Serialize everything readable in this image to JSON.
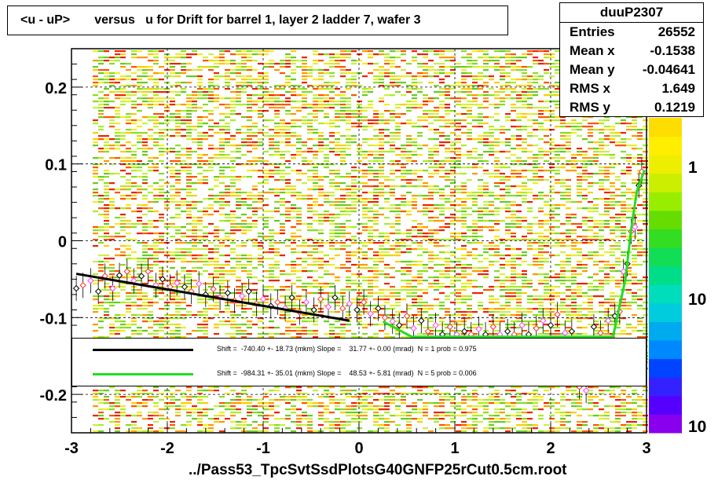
{
  "title": "<u - uP>       versus   u for Drift for barrel 1, layer 2 ladder 7, wafer 3",
  "stats": {
    "name": "duuP2307",
    "rows": [
      {
        "label": "Entries",
        "value": "26552"
      },
      {
        "label": "Mean x",
        "value": "-0.1538"
      },
      {
        "label": "Mean y",
        "value": "-0.04641"
      },
      {
        "label": "RMS x",
        "value": "1.649"
      },
      {
        "label": "RMS y",
        "value": "0.1219"
      }
    ]
  },
  "fits": [
    {
      "text": "Shift =  -740.40 +- 18.73 (mkm) Slope =    31.77 +- 0.00 (mrad)  N = 1 prob = 0.975",
      "color": "#000000"
    },
    {
      "text": "Shift =  -984.31 +- 35.01 (mkm) Slope =    48.53 +- 5.81 (mrad)  N = 5 prob = 0.006",
      "color": "#22dd22"
    }
  ],
  "footer": "../Pass53_TpcSvtSsdPlotsG40GNFP25rCut0.5cm.root",
  "chart_data": {
    "type": "heatmap",
    "xlim": [
      -3,
      3
    ],
    "ylim": [
      -0.25,
      0.25
    ],
    "x_ticks": [
      "-3",
      "-2",
      "-1",
      "0",
      "1",
      "2",
      "3"
    ],
    "y_ticks": [
      "-0.2",
      "-0.1",
      "0",
      "0.1",
      "0.2"
    ],
    "grid": true,
    "z_scale": "log",
    "z_ticks": [
      "1",
      "10",
      "10"
    ],
    "profile_points": [
      [
        -2.95,
        -0.062
      ],
      [
        -2.88,
        -0.058
      ],
      [
        -2.8,
        -0.052
      ],
      [
        -2.72,
        -0.066
      ],
      [
        -2.65,
        -0.046
      ],
      [
        -2.57,
        -0.062
      ],
      [
        -2.5,
        -0.045
      ],
      [
        -2.42,
        -0.04
      ],
      [
        -2.35,
        -0.052
      ],
      [
        -2.27,
        -0.046
      ],
      [
        -2.2,
        -0.04
      ],
      [
        -2.12,
        -0.058
      ],
      [
        -2.05,
        -0.05
      ],
      [
        -1.97,
        -0.06
      ],
      [
        -1.9,
        -0.055
      ],
      [
        -1.82,
        -0.06
      ],
      [
        -1.75,
        -0.066
      ],
      [
        -1.67,
        -0.056
      ],
      [
        -1.6,
        -0.07
      ],
      [
        -1.52,
        -0.063
      ],
      [
        -1.45,
        -0.074
      ],
      [
        -1.37,
        -0.068
      ],
      [
        -1.3,
        -0.078
      ],
      [
        -1.22,
        -0.072
      ],
      [
        -1.15,
        -0.066
      ],
      [
        -1.07,
        -0.082
      ],
      [
        -1.0,
        -0.076
      ],
      [
        -0.92,
        -0.085
      ],
      [
        -0.85,
        -0.08
      ],
      [
        -0.77,
        -0.088
      ],
      [
        -0.7,
        -0.074
      ],
      [
        -0.62,
        -0.093
      ],
      [
        -0.55,
        -0.08
      ],
      [
        -0.47,
        -0.09
      ],
      [
        -0.4,
        -0.076
      ],
      [
        -0.32,
        -0.086
      ],
      [
        -0.25,
        -0.074
      ],
      [
        -0.17,
        -0.088
      ],
      [
        -0.1,
        -0.082
      ],
      [
        -0.02,
        -0.09
      ],
      [
        0.05,
        -0.08
      ],
      [
        0.12,
        -0.095
      ],
      [
        0.2,
        -0.088
      ],
      [
        0.27,
        -0.1
      ],
      [
        0.35,
        -0.105
      ],
      [
        0.42,
        -0.11
      ],
      [
        0.5,
        -0.098
      ],
      [
        0.57,
        -0.114
      ],
      [
        0.65,
        -0.104
      ],
      [
        0.72,
        -0.118
      ],
      [
        0.8,
        -0.11
      ],
      [
        0.87,
        -0.122
      ],
      [
        0.95,
        -0.112
      ],
      [
        1.02,
        -0.122
      ],
      [
        1.1,
        -0.118
      ],
      [
        1.17,
        -0.122
      ],
      [
        1.25,
        -0.115
      ],
      [
        1.32,
        -0.122
      ],
      [
        1.4,
        -0.112
      ],
      [
        1.47,
        -0.122
      ],
      [
        1.55,
        -0.118
      ],
      [
        1.62,
        -0.122
      ],
      [
        1.7,
        -0.11
      ],
      [
        1.77,
        -0.122
      ],
      [
        1.85,
        -0.114
      ],
      [
        1.92,
        -0.104
      ],
      [
        2.0,
        -0.11
      ],
      [
        2.07,
        -0.096
      ],
      [
        2.15,
        -0.12
      ],
      [
        2.22,
        -0.118
      ],
      [
        2.3,
        -0.19
      ],
      [
        2.37,
        -0.195
      ],
      [
        2.45,
        -0.112
      ],
      [
        2.52,
        -0.12
      ],
      [
        2.6,
        -0.104
      ],
      [
        2.67,
        -0.098
      ],
      [
        2.72,
        -0.092
      ],
      [
        2.76,
        -0.04
      ],
      [
        2.8,
        -0.03
      ],
      [
        2.84,
        0.012
      ],
      [
        2.88,
        0.018
      ],
      [
        2.92,
        0.072
      ],
      [
        2.95,
        0.09
      ]
    ],
    "fit_black": {
      "x": [
        -2.95,
        -0.1
      ],
      "y": [
        -0.043,
        -0.104
      ]
    },
    "fit_green": [
      [
        0.25,
        -0.105
      ],
      [
        0.55,
        -0.125
      ],
      [
        2.65,
        -0.125
      ],
      [
        2.78,
        -0.05
      ],
      [
        2.84,
        0.015
      ],
      [
        2.9,
        0.065
      ],
      [
        2.98,
        0.092
      ]
    ]
  }
}
